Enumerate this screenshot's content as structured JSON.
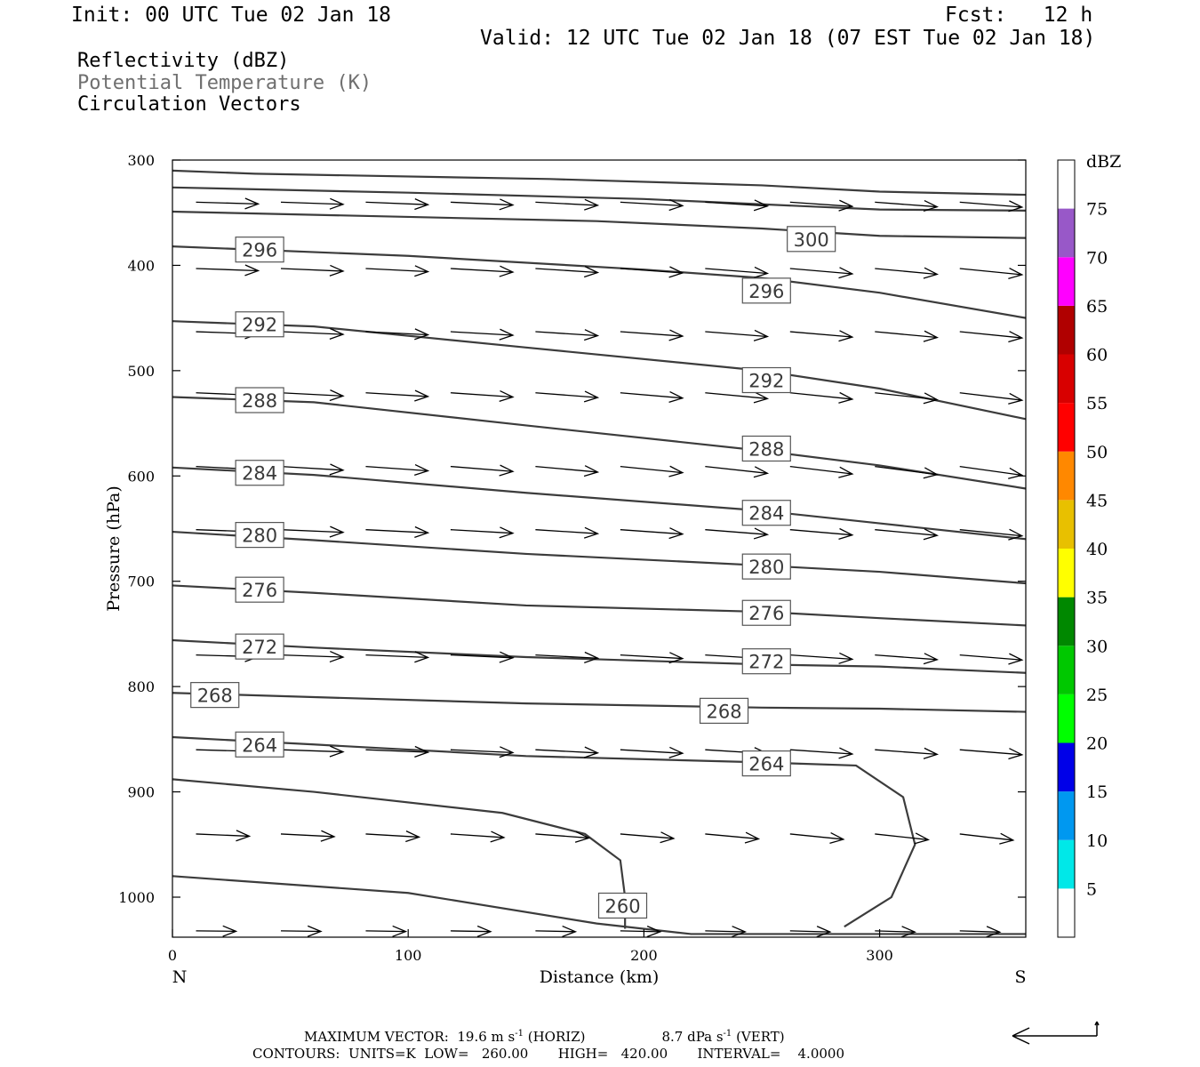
{
  "header": {
    "init": "Init: 00 UTC Tue 02 Jan 18",
    "fcst": "Fcst:   12 h",
    "valid": "Valid: 12 UTC Tue 02 Jan 18 (07 EST Tue 02 Jan 18)"
  },
  "fields": {
    "reflectivity": "Reflectivity (dBZ)",
    "theta": "Potential Temperature (K)",
    "vectors": "Circulation Vectors"
  },
  "footer": {
    "max_vector": "MAXIMUM VECTOR:  19.6 m s",
    "horiz_exp": "-1",
    "horiz": " (HORIZ)",
    "vert_val": "8.7 dPa s",
    "vert_exp": "-1",
    "vert": " (VERT)",
    "contours": "CONTOURS:  UNITS=K  LOW=   260.00       HIGH=   420.00       INTERVAL=    4.0000"
  },
  "chart_data": {
    "type": "line",
    "title": "",
    "xlabel": "Distance (km)",
    "ylabel": "Pressure (hPa)",
    "x_range": [
      0,
      362
    ],
    "y_range": [
      300,
      1038
    ],
    "y_log": false,
    "x_ticks": [
      0,
      100,
      200,
      300
    ],
    "y_ticks": [
      300,
      400,
      500,
      600,
      700,
      800,
      900,
      1000
    ],
    "left_end_label": "N",
    "right_end_label": "S",
    "contour_levels": [
      "260",
      "264",
      "268",
      "272",
      "276",
      "280",
      "284",
      "288",
      "292",
      "296",
      "300"
    ],
    "isentropes": [
      {
        "level": "300",
        "x": [
          0,
          35,
          160,
          250,
          300,
          362
        ],
        "p": [
          310,
          313,
          318,
          324,
          330,
          333
        ]
      },
      {
        "level": "300",
        "x": [
          0,
          100,
          200,
          250,
          300,
          362
        ],
        "p": [
          326,
          331,
          337,
          342,
          347,
          348
        ]
      },
      {
        "level": "300",
        "x": [
          0,
          100,
          180,
          250,
          300,
          362
        ],
        "p": [
          349,
          354,
          358,
          365,
          372,
          374
        ]
      },
      {
        "level": "296",
        "x": [
          0,
          100,
          200,
          250,
          300,
          362
        ],
        "p": [
          382,
          391,
          404,
          412,
          426,
          450
        ]
      },
      {
        "level": "292",
        "x": [
          0,
          60,
          150,
          250,
          300,
          362
        ],
        "p": [
          453,
          458,
          478,
          500,
          517,
          546
        ]
      },
      {
        "level": "288",
        "x": [
          0,
          60,
          150,
          250,
          300,
          362
        ],
        "p": [
          525,
          530,
          552,
          576,
          590,
          612
        ]
      },
      {
        "level": "284",
        "x": [
          0,
          60,
          150,
          250,
          300,
          362
        ],
        "p": [
          592,
          599,
          616,
          633,
          645,
          660
        ]
      },
      {
        "level": "280",
        "x": [
          0,
          60,
          150,
          250,
          300,
          362
        ],
        "p": [
          653,
          661,
          674,
          685,
          691,
          702
        ]
      },
      {
        "level": "276",
        "x": [
          0,
          60,
          150,
          250,
          300,
          362
        ],
        "p": [
          704,
          711,
          723,
          729,
          735,
          742
        ]
      },
      {
        "level": "272",
        "x": [
          0,
          60,
          150,
          250,
          300,
          362
        ],
        "p": [
          756,
          763,
          772,
          779,
          781,
          787
        ]
      },
      {
        "level": "268",
        "x": [
          0,
          60,
          150,
          250,
          300,
          362
        ],
        "p": [
          806,
          810,
          816,
          820,
          821,
          824
        ]
      },
      {
        "level": "264",
        "x": [
          0,
          60,
          150,
          250,
          290,
          310,
          315,
          305,
          285
        ],
        "p": [
          848,
          855,
          866,
          872,
          875,
          905,
          950,
          1000,
          1028
        ]
      },
      {
        "level": "260",
        "x": [
          0,
          60,
          140,
          175,
          190,
          192,
          192
        ],
        "p": [
          888,
          900,
          920,
          940,
          965,
          1000,
          1030
        ]
      },
      {
        "level": "260",
        "x": [
          0,
          100,
          180,
          220,
          362
        ],
        "p": [
          980,
          996,
          1025,
          1035,
          1035
        ]
      }
    ],
    "contour_labels": [
      {
        "text": "300",
        "x": 271,
        "p": 375
      },
      {
        "text": "296",
        "x": 37,
        "p": 385
      },
      {
        "text": "296",
        "x": 252,
        "p": 424
      },
      {
        "text": "292",
        "x": 37,
        "p": 456
      },
      {
        "text": "292",
        "x": 252,
        "p": 509
      },
      {
        "text": "288",
        "x": 37,
        "p": 528
      },
      {
        "text": "288",
        "x": 252,
        "p": 574
      },
      {
        "text": "284",
        "x": 37,
        "p": 597
      },
      {
        "text": "284",
        "x": 252,
        "p": 635
      },
      {
        "text": "280",
        "x": 37,
        "p": 656
      },
      {
        "text": "280",
        "x": 252,
        "p": 686
      },
      {
        "text": "276",
        "x": 37,
        "p": 708
      },
      {
        "text": "276",
        "x": 252,
        "p": 730
      },
      {
        "text": "272",
        "x": 37,
        "p": 762
      },
      {
        "text": "272",
        "x": 252,
        "p": 776
      },
      {
        "text": "268",
        "x": 18,
        "p": 808
      },
      {
        "text": "268",
        "x": 234,
        "p": 823
      },
      {
        "text": "264",
        "x": 37,
        "p": 855
      },
      {
        "text": "264",
        "x": 252,
        "p": 873
      },
      {
        "text": "260",
        "x": 191,
        "p": 1008
      }
    ],
    "colorbar": {
      "unit": "dBZ",
      "labels": [
        "5",
        "10",
        "15",
        "20",
        "25",
        "30",
        "35",
        "40",
        "45",
        "50",
        "55",
        "60",
        "65",
        "70",
        "75"
      ],
      "colors": [
        "#00e8e8",
        "#0098f0",
        "#0000e8",
        "#00ff00",
        "#00c800",
        "#008800",
        "#ffff00",
        "#e8c000",
        "#ff8800",
        "#ff0000",
        "#d80000",
        "#b00000",
        "#ff00ff",
        "#9858c8"
      ]
    },
    "vector_rows": [
      {
        "p": 340,
        "u": 0.7,
        "v": -0.04
      },
      {
        "p": 403,
        "u": 0.7,
        "v": -0.05
      },
      {
        "p": 463,
        "u": 0.7,
        "v": -0.05
      },
      {
        "p": 521,
        "u": 0.7,
        "v": -0.06
      },
      {
        "p": 591,
        "u": 0.7,
        "v": -0.07
      },
      {
        "p": 651,
        "u": 0.7,
        "v": -0.05
      },
      {
        "p": 770,
        "u": 0.7,
        "v": -0.04
      },
      {
        "p": 860,
        "u": 0.7,
        "v": -0.04
      },
      {
        "p": 940,
        "u": 0.6,
        "v": -0.05
      },
      {
        "p": 1032,
        "u": 0.45,
        "v": -0.01
      }
    ]
  }
}
